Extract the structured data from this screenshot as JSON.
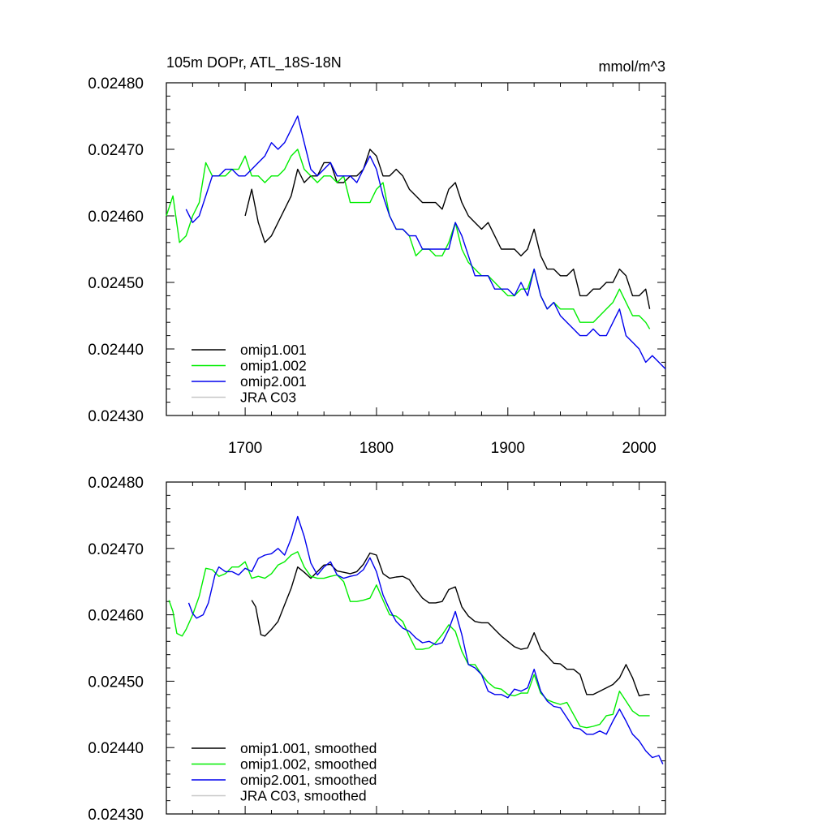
{
  "chart_data": [
    {
      "type": "line",
      "title": "105m DOPr, ATL_18S-18N",
      "units": "mmol/m^3",
      "xlabel": "",
      "ylabel": "",
      "xlim": [
        1640,
        2020
      ],
      "ylim": [
        0.0243,
        0.0248
      ],
      "xticks": [
        1700,
        1800,
        1900,
        2000
      ],
      "xtick_labels": [
        "1700",
        "1800",
        "1900",
        "2000"
      ],
      "yticks": [
        0.0243,
        0.0244,
        0.0245,
        0.0246,
        0.0247,
        0.0248
      ],
      "ytick_labels": [
        "0.02430",
        "0.02440",
        "0.02450",
        "0.02460",
        "0.02470",
        "0.02480"
      ],
      "legend": "bottom-left",
      "series": [
        {
          "name": "omip1.001",
          "color": "#000000",
          "x": [
            1700,
            1705,
            1710,
            1715,
            1720,
            1725,
            1730,
            1735,
            1740,
            1745,
            1750,
            1755,
            1760,
            1765,
            1770,
            1775,
            1780,
            1785,
            1790,
            1795,
            1800,
            1805,
            1810,
            1815,
            1820,
            1825,
            1830,
            1835,
            1840,
            1845,
            1850,
            1855,
            1860,
            1865,
            1870,
            1875,
            1880,
            1885,
            1890,
            1895,
            1900,
            1905,
            1910,
            1915,
            1920,
            1925,
            1930,
            1935,
            1940,
            1945,
            1950,
            1955,
            1960,
            1965,
            1970,
            1975,
            1980,
            1985,
            1990,
            1995,
            2000,
            2005,
            2008
          ],
          "y": [
            0.0246,
            0.02464,
            0.02459,
            0.02456,
            0.02457,
            0.02459,
            0.02461,
            0.02463,
            0.02467,
            0.02465,
            0.02466,
            0.02466,
            0.02468,
            0.02468,
            0.02465,
            0.02465,
            0.02466,
            0.02466,
            0.02467,
            0.0247,
            0.02469,
            0.02466,
            0.02466,
            0.02467,
            0.02466,
            0.02464,
            0.02463,
            0.02462,
            0.02462,
            0.02462,
            0.02461,
            0.02464,
            0.02465,
            0.02462,
            0.0246,
            0.02459,
            0.02458,
            0.02459,
            0.02457,
            0.02455,
            0.02455,
            0.02455,
            0.02454,
            0.02455,
            0.02458,
            0.02454,
            0.02452,
            0.02452,
            0.02451,
            0.02451,
            0.02452,
            0.02448,
            0.02448,
            0.02449,
            0.02449,
            0.0245,
            0.0245,
            0.02452,
            0.02451,
            0.02448,
            0.02448,
            0.02449,
            0.02446
          ]
        },
        {
          "name": "omip1.002",
          "color": "#00ee00",
          "x": [
            1640,
            1645,
            1650,
            1655,
            1660,
            1665,
            1670,
            1675,
            1680,
            1685,
            1690,
            1695,
            1700,
            1705,
            1710,
            1715,
            1720,
            1725,
            1730,
            1735,
            1740,
            1745,
            1750,
            1755,
            1760,
            1765,
            1770,
            1775,
            1780,
            1785,
            1790,
            1795,
            1800,
            1805,
            1810,
            1815,
            1820,
            1825,
            1830,
            1835,
            1840,
            1845,
            1850,
            1855,
            1860,
            1865,
            1870,
            1875,
            1880,
            1885,
            1890,
            1895,
            1900,
            1905,
            1910,
            1915,
            1920,
            1925,
            1930,
            1935,
            1940,
            1945,
            1950,
            1955,
            1960,
            1965,
            1970,
            1975,
            1980,
            1985,
            1990,
            1995,
            2000,
            2005,
            2008
          ],
          "y": [
            0.0246,
            0.02463,
            0.02456,
            0.02457,
            0.0246,
            0.02462,
            0.02468,
            0.02466,
            0.02466,
            0.02466,
            0.02467,
            0.02467,
            0.02469,
            0.02466,
            0.02466,
            0.02465,
            0.02466,
            0.02466,
            0.02467,
            0.02469,
            0.0247,
            0.02467,
            0.02466,
            0.02465,
            0.02466,
            0.02466,
            0.02465,
            0.02466,
            0.02462,
            0.02462,
            0.02462,
            0.02462,
            0.02464,
            0.02465,
            0.0246,
            0.02458,
            0.02458,
            0.02457,
            0.02454,
            0.02455,
            0.02455,
            0.02454,
            0.02454,
            0.02456,
            0.02459,
            0.02455,
            0.02453,
            0.02452,
            0.02451,
            0.02451,
            0.0245,
            0.02449,
            0.02448,
            0.02448,
            0.02449,
            0.02449,
            0.02452,
            0.02448,
            0.02446,
            0.02447,
            0.02446,
            0.02446,
            0.02446,
            0.02444,
            0.02444,
            0.02444,
            0.02445,
            0.02446,
            0.02447,
            0.02449,
            0.02447,
            0.02445,
            0.02445,
            0.02444,
            0.02443
          ]
        },
        {
          "name": "omip2.001",
          "color": "#0000ee",
          "x": [
            1655,
            1660,
            1665,
            1670,
            1675,
            1680,
            1685,
            1690,
            1695,
            1700,
            1705,
            1710,
            1715,
            1720,
            1725,
            1730,
            1735,
            1740,
            1745,
            1750,
            1755,
            1760,
            1765,
            1770,
            1775,
            1780,
            1785,
            1790,
            1795,
            1800,
            1805,
            1810,
            1815,
            1820,
            1825,
            1830,
            1835,
            1840,
            1845,
            1850,
            1855,
            1860,
            1865,
            1870,
            1875,
            1880,
            1885,
            1890,
            1895,
            1900,
            1905,
            1910,
            1915,
            1920,
            1925,
            1930,
            1935,
            1940,
            1945,
            1950,
            1955,
            1960,
            1965,
            1970,
            1975,
            1980,
            1985,
            1990,
            1995,
            2000,
            2005,
            2010,
            2015,
            2020
          ],
          "y": [
            0.02461,
            0.02459,
            0.0246,
            0.02463,
            0.02466,
            0.02466,
            0.02467,
            0.02467,
            0.02466,
            0.02466,
            0.02467,
            0.02468,
            0.02469,
            0.02471,
            0.0247,
            0.02471,
            0.02473,
            0.02475,
            0.02471,
            0.02467,
            0.02466,
            0.02467,
            0.02468,
            0.02466,
            0.02466,
            0.02466,
            0.02465,
            0.02467,
            0.02469,
            0.02467,
            0.02463,
            0.0246,
            0.02458,
            0.02458,
            0.02457,
            0.02457,
            0.02455,
            0.02455,
            0.02455,
            0.02455,
            0.02455,
            0.02459,
            0.02457,
            0.02454,
            0.02451,
            0.02451,
            0.02451,
            0.02449,
            0.02449,
            0.02449,
            0.02448,
            0.0245,
            0.02448,
            0.02452,
            0.02448,
            0.02446,
            0.02447,
            0.02445,
            0.02444,
            0.02443,
            0.02442,
            0.02442,
            0.02443,
            0.02442,
            0.02442,
            0.02444,
            0.02446,
            0.02442,
            0.02441,
            0.0244,
            0.02438,
            0.02439,
            0.02438,
            0.02437
          ]
        },
        {
          "name": "JRA C03",
          "color": "#c8c8c8",
          "x": [],
          "y": []
        }
      ]
    },
    {
      "type": "line",
      "title": "",
      "xlabel": "",
      "ylabel": "",
      "xlim": [
        1640,
        2020
      ],
      "ylim": [
        0.0243,
        0.0248
      ],
      "xticks": [
        1700,
        1800,
        1900,
        2000
      ],
      "xtick_labels": [],
      "yticks": [
        0.0243,
        0.0244,
        0.0245,
        0.0246,
        0.0247,
        0.0248
      ],
      "ytick_labels": [
        "0.02430",
        "0.02440",
        "0.02450",
        "0.02460",
        "0.02470",
        "0.02480"
      ],
      "legend": "bottom-left",
      "series": [
        {
          "name": "omip1.001, smoothed",
          "color": "#000000",
          "x": [
            1705,
            1708,
            1712,
            1715,
            1720,
            1725,
            1730,
            1735,
            1740,
            1745,
            1750,
            1755,
            1760,
            1765,
            1770,
            1775,
            1780,
            1785,
            1790,
            1795,
            1800,
            1805,
            1810,
            1815,
            1820,
            1825,
            1830,
            1835,
            1840,
            1845,
            1850,
            1855,
            1860,
            1865,
            1870,
            1875,
            1880,
            1885,
            1890,
            1895,
            1900,
            1905,
            1910,
            1915,
            1920,
            1925,
            1930,
            1935,
            1940,
            1945,
            1950,
            1955,
            1960,
            1965,
            1970,
            1975,
            1980,
            1985,
            1990,
            1995,
            2000,
            2005,
            2008
          ],
          "y": [
            0.024622,
            0.024612,
            0.02457,
            0.024568,
            0.024578,
            0.02459,
            0.024615,
            0.02464,
            0.024672,
            0.024664,
            0.024655,
            0.024665,
            0.024675,
            0.024676,
            0.024666,
            0.024664,
            0.024662,
            0.024665,
            0.024676,
            0.024693,
            0.02469,
            0.024662,
            0.024655,
            0.024657,
            0.024658,
            0.024653,
            0.024638,
            0.024625,
            0.024618,
            0.024618,
            0.02462,
            0.024638,
            0.024642,
            0.024612,
            0.024598,
            0.02459,
            0.024588,
            0.024588,
            0.024578,
            0.024568,
            0.02456,
            0.024552,
            0.024548,
            0.02455,
            0.024573,
            0.024548,
            0.024538,
            0.024527,
            0.024526,
            0.024518,
            0.024518,
            0.02451,
            0.02448,
            0.02448,
            0.024485,
            0.02449,
            0.024495,
            0.024505,
            0.024525,
            0.024505,
            0.024478,
            0.02448,
            0.02448
          ]
        },
        {
          "name": "omip1.002, smoothed",
          "color": "#00ee00",
          "x": [
            1642,
            1645,
            1648,
            1652,
            1655,
            1660,
            1665,
            1670,
            1675,
            1680,
            1685,
            1690,
            1695,
            1700,
            1705,
            1710,
            1715,
            1720,
            1725,
            1730,
            1735,
            1740,
            1745,
            1750,
            1755,
            1760,
            1765,
            1770,
            1775,
            1780,
            1785,
            1790,
            1795,
            1800,
            1805,
            1810,
            1815,
            1820,
            1825,
            1830,
            1835,
            1840,
            1845,
            1850,
            1855,
            1860,
            1865,
            1870,
            1875,
            1880,
            1885,
            1890,
            1895,
            1900,
            1905,
            1910,
            1915,
            1920,
            1925,
            1930,
            1935,
            1940,
            1945,
            1950,
            1955,
            1960,
            1965,
            1970,
            1975,
            1980,
            1985,
            1990,
            1995,
            2000,
            2005,
            2008
          ],
          "y": [
            0.024622,
            0.024605,
            0.024572,
            0.024568,
            0.024578,
            0.0246,
            0.024628,
            0.02467,
            0.024668,
            0.024658,
            0.024662,
            0.024672,
            0.024672,
            0.02468,
            0.024655,
            0.024658,
            0.024655,
            0.024662,
            0.024675,
            0.02468,
            0.02469,
            0.024695,
            0.024672,
            0.024658,
            0.024655,
            0.024655,
            0.024658,
            0.02466,
            0.02465,
            0.02462,
            0.02462,
            0.024622,
            0.024625,
            0.024645,
            0.024622,
            0.0246,
            0.024598,
            0.02459,
            0.024568,
            0.024548,
            0.024548,
            0.02455,
            0.024558,
            0.02457,
            0.024585,
            0.024575,
            0.024545,
            0.024525,
            0.024525,
            0.02451,
            0.024498,
            0.02449,
            0.024488,
            0.02448,
            0.024478,
            0.024482,
            0.024482,
            0.02451,
            0.024482,
            0.024472,
            0.024468,
            0.024465,
            0.024468,
            0.02445,
            0.024432,
            0.02443,
            0.024432,
            0.024435,
            0.024448,
            0.02445,
            0.024485,
            0.02447,
            0.024455,
            0.024448,
            0.024448,
            0.024448
          ]
        },
        {
          "name": "omip2.001, smoothed",
          "color": "#0000ee",
          "x": [
            1657,
            1660,
            1663,
            1668,
            1672,
            1677,
            1680,
            1685,
            1690,
            1695,
            1700,
            1705,
            1710,
            1715,
            1720,
            1725,
            1730,
            1735,
            1740,
            1745,
            1750,
            1755,
            1760,
            1765,
            1770,
            1775,
            1780,
            1785,
            1790,
            1795,
            1800,
            1805,
            1810,
            1815,
            1820,
            1825,
            1830,
            1835,
            1840,
            1845,
            1850,
            1855,
            1860,
            1865,
            1870,
            1875,
            1880,
            1885,
            1890,
            1895,
            1900,
            1905,
            1910,
            1915,
            1920,
            1925,
            1930,
            1935,
            1940,
            1945,
            1950,
            1955,
            1960,
            1965,
            1970,
            1975,
            1980,
            1985,
            1990,
            1995,
            2000,
            2005,
            2010,
            2015,
            2018
          ],
          "y": [
            0.024618,
            0.024602,
            0.024595,
            0.0246,
            0.024618,
            0.02466,
            0.024672,
            0.024665,
            0.024665,
            0.02466,
            0.02467,
            0.024665,
            0.024685,
            0.02469,
            0.024692,
            0.0247,
            0.02469,
            0.024715,
            0.024748,
            0.024718,
            0.024678,
            0.02466,
            0.024672,
            0.02468,
            0.02466,
            0.024655,
            0.024658,
            0.02466,
            0.024668,
            0.024686,
            0.024665,
            0.02463,
            0.024608,
            0.02459,
            0.02458,
            0.024575,
            0.024565,
            0.024558,
            0.02456,
            0.024555,
            0.024558,
            0.024578,
            0.024605,
            0.02457,
            0.024525,
            0.02452,
            0.02451,
            0.024485,
            0.02448,
            0.02448,
            0.024475,
            0.024488,
            0.024485,
            0.02449,
            0.024518,
            0.024485,
            0.02447,
            0.024462,
            0.02446,
            0.024445,
            0.02443,
            0.024428,
            0.02442,
            0.02442,
            0.024425,
            0.02442,
            0.02444,
            0.024458,
            0.02444,
            0.02442,
            0.02441,
            0.024395,
            0.024385,
            0.024388,
            0.024375
          ]
        },
        {
          "name": "JRA C03, smoothed",
          "color": "#c8c8c8",
          "x": [],
          "y": []
        }
      ]
    }
  ]
}
